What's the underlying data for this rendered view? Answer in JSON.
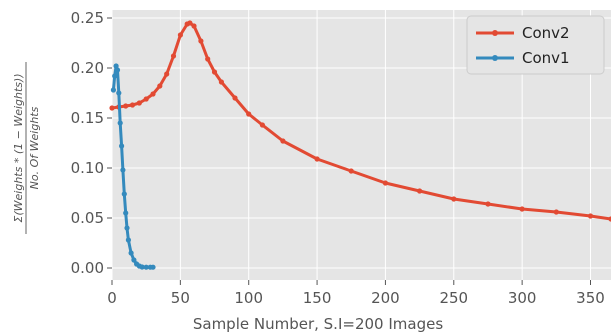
{
  "chart_data": {
    "type": "line",
    "xlabel": "Sample Number, S.I=200 Images",
    "ylabel_numerator": "Σ(Weights * (1 − Weights))",
    "ylabel_denominator": "No. Of Weights",
    "xlim": [
      0,
      365
    ],
    "ylim": [
      -0.012,
      0.258
    ],
    "x_ticks": [
      0,
      50,
      100,
      150,
      200,
      250,
      300,
      350
    ],
    "y_ticks": [
      0.0,
      0.05,
      0.1,
      0.15,
      0.2,
      0.25
    ],
    "x_tick_labels": [
      "0",
      "50",
      "100",
      "150",
      "200",
      "250",
      "300",
      "350"
    ],
    "y_tick_labels": [
      "0.00",
      "0.05",
      "0.10",
      "0.15",
      "0.20",
      "0.25"
    ],
    "grid": true,
    "legend_position": "top-right",
    "series": [
      {
        "name": "Conv2",
        "color": "#E24A33",
        "x": [
          0,
          5,
          10,
          15,
          20,
          25,
          30,
          35,
          40,
          45,
          50,
          55,
          57,
          60,
          65,
          70,
          75,
          80,
          90,
          100,
          110,
          125,
          150,
          175,
          200,
          225,
          250,
          275,
          300,
          325,
          350,
          365
        ],
        "y": [
          0.16,
          0.161,
          0.162,
          0.163,
          0.165,
          0.169,
          0.174,
          0.182,
          0.194,
          0.212,
          0.233,
          0.244,
          0.245,
          0.242,
          0.227,
          0.209,
          0.196,
          0.186,
          0.17,
          0.154,
          0.143,
          0.127,
          0.109,
          0.097,
          0.085,
          0.077,
          0.069,
          0.064,
          0.059,
          0.056,
          0.052,
          0.049
        ]
      },
      {
        "name": "Conv1",
        "color": "#348ABD",
        "x": [
          1,
          2,
          3,
          4,
          5,
          6,
          7,
          8,
          9,
          10,
          11,
          12,
          14,
          16,
          18,
          20,
          22,
          25,
          28,
          30
        ],
        "y": [
          0.178,
          0.192,
          0.202,
          0.198,
          0.175,
          0.145,
          0.122,
          0.098,
          0.074,
          0.055,
          0.04,
          0.028,
          0.015,
          0.008,
          0.004,
          0.002,
          0.001,
          0.0008,
          0.0008,
          0.0008
        ]
      }
    ]
  }
}
